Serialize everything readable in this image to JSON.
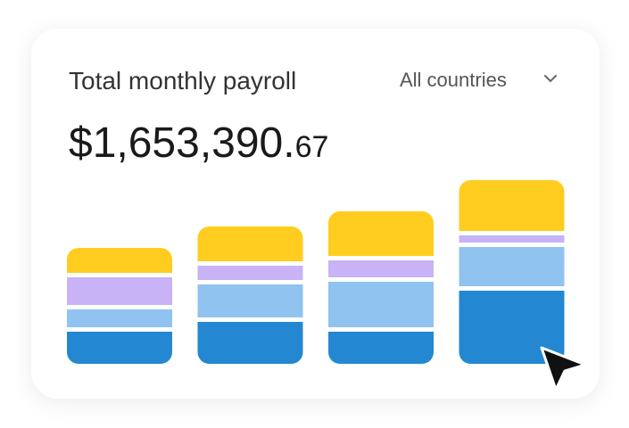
{
  "header": {
    "title": "Total monthly payroll",
    "filter": "All countries"
  },
  "total": {
    "whole": "$1,653,390.",
    "cents": "67"
  },
  "chart_data": {
    "type": "bar",
    "stacked": true,
    "categories": [
      null,
      null,
      null,
      null
    ],
    "series": [
      {
        "color": "#2388d1",
        "values": [
          36,
          47,
          36,
          82
        ]
      },
      {
        "color": "#90c3f0",
        "values": [
          20,
          37,
          51,
          44
        ]
      },
      {
        "color": "#c7b3f5",
        "values": [
          31,
          16,
          19,
          8
        ]
      },
      {
        "color": "#ffcd1f",
        "values": [
          28,
          39,
          50,
          57
        ]
      }
    ]
  }
}
